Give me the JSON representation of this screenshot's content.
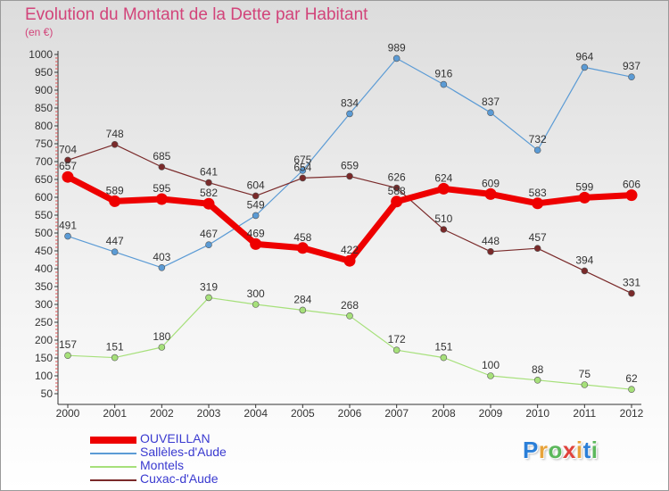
{
  "title": "Evolution du Montant de la Dette par Habitant",
  "subtitle": "(en €)",
  "brand": {
    "text": "Proxiti",
    "letter_colors": [
      "#2b7fd8",
      "#e8a33a",
      "#5cb85c",
      "#e0423c",
      "#e8a33a",
      "#2b7fd8",
      "#5cb85c"
    ]
  },
  "chart_data": {
    "type": "line",
    "title": "Evolution du Montant de la Dette par Habitant",
    "ylabel": "(en €)",
    "x": [
      "2000",
      "2001",
      "2002",
      "2003",
      "2004",
      "2005",
      "2006",
      "2007",
      "2008",
      "2009",
      "2010",
      "2011",
      "2012"
    ],
    "ylim": [
      50,
      1000
    ],
    "yticks": [
      50,
      100,
      150,
      200,
      250,
      300,
      350,
      400,
      450,
      500,
      550,
      600,
      650,
      700,
      750,
      800,
      850,
      900,
      950,
      1000
    ],
    "grid": false,
    "legend_position": "bottom-left",
    "series": [
      {
        "name": "OUVEILLAN",
        "color": "#ee0000",
        "width": 7,
        "marker": 6.5,
        "values": [
          657,
          589,
          595,
          582,
          469,
          458,
          422,
          588,
          624,
          609,
          583,
          599,
          606
        ]
      },
      {
        "name": "Sallèles-d'Aude",
        "color": "#5b9bd5",
        "width": 1.2,
        "marker": 3.5,
        "values": [
          491,
          447,
          403,
          467,
          549,
          675,
          834,
          989,
          916,
          837,
          732,
          964,
          937
        ]
      },
      {
        "name": "Montels",
        "color": "#a6e07a",
        "width": 1.2,
        "marker": 3.5,
        "values": [
          157,
          151,
          180,
          319,
          300,
          284,
          268,
          172,
          151,
          100,
          88,
          75,
          62
        ]
      },
      {
        "name": "Cuxac-d'Aude",
        "color": "#7a2a2a",
        "width": 1.2,
        "marker": 3.5,
        "values": [
          704,
          748,
          685,
          641,
          604,
          654,
          659,
          626,
          510,
          448,
          457,
          394,
          331
        ]
      }
    ]
  }
}
